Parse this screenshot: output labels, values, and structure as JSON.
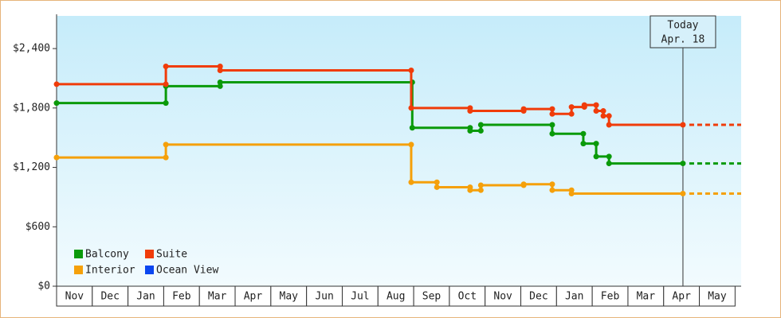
{
  "chart_data": {
    "type": "step-line",
    "categories": [
      "Nov",
      "Dec",
      "Jan",
      "Feb",
      "Mar",
      "Apr",
      "May",
      "Jun",
      "Jul",
      "Aug",
      "Sep",
      "Oct",
      "Nov",
      "Dec",
      "Jan",
      "Feb",
      "Mar",
      "Apr",
      "May"
    ],
    "xlim": [
      0,
      19.17
    ],
    "ylim": [
      0,
      2730
    ],
    "yticks": [
      {
        "value": 0,
        "label": "$0"
      },
      {
        "value": 600,
        "label": "$600"
      },
      {
        "value": 1200,
        "label": "$1,200"
      },
      {
        "value": 1800,
        "label": "$1,800"
      },
      {
        "value": 2400,
        "label": "$2,400"
      }
    ],
    "grid": false,
    "legend": "bottom-left",
    "today": {
      "x": 17.54,
      "label": [
        "Today",
        "Apr. 18"
      ]
    },
    "series": [
      {
        "name": "Balcony",
        "color": "#0a9a0a",
        "x": [
          0,
          3.06,
          3.06,
          4.58,
          4.58,
          9.96,
          9.96,
          11.58,
          11.58,
          11.88,
          11.88,
          13.88,
          13.88,
          14.75,
          14.75,
          15.11,
          15.11,
          15.47,
          15.47,
          17.54
        ],
        "values": [
          1850,
          1850,
          2020,
          2020,
          2060,
          2060,
          1600,
          1600,
          1570,
          1570,
          1630,
          1630,
          1540,
          1540,
          1440,
          1440,
          1310,
          1310,
          1240,
          1240
        ]
      },
      {
        "name": "Suite",
        "color": "#f03c0a",
        "x": [
          0,
          3.06,
          3.06,
          4.58,
          4.58,
          9.93,
          9.93,
          11.58,
          11.58,
          13.08,
          13.08,
          13.88,
          13.88,
          14.42,
          14.42,
          14.78,
          14.78,
          15.11,
          15.11,
          15.31,
          15.31,
          15.47,
          15.47,
          17.54
        ],
        "values": [
          2040,
          2040,
          2220,
          2220,
          2180,
          2180,
          1800,
          1800,
          1770,
          1770,
          1790,
          1790,
          1740,
          1740,
          1810,
          1810,
          1830,
          1830,
          1770,
          1770,
          1720,
          1720,
          1630,
          1630
        ]
      },
      {
        "name": "Interior",
        "color": "#f5a00a",
        "x": [
          0,
          3.06,
          3.06,
          9.93,
          9.93,
          10.65,
          10.65,
          11.58,
          11.58,
          11.88,
          11.88,
          13.08,
          13.08,
          13.88,
          13.88,
          14.42,
          14.42,
          17.54
        ],
        "values": [
          1300,
          1300,
          1430,
          1430,
          1050,
          1050,
          1000,
          1000,
          970,
          970,
          1020,
          1020,
          1030,
          1030,
          970,
          970,
          935,
          935
        ]
      },
      {
        "name": "Ocean View",
        "color": "#0a46f0",
        "x": [],
        "values": []
      }
    ]
  }
}
